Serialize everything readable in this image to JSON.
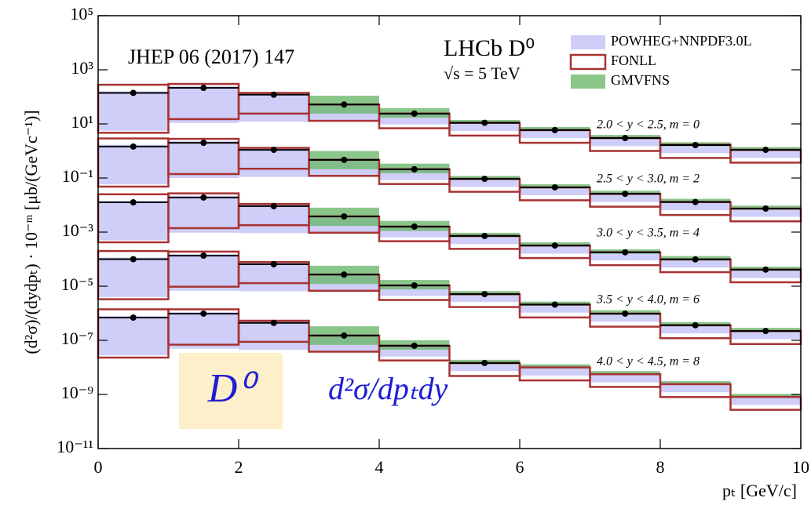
{
  "chart_data": {
    "type": "band-histogram",
    "annotations": {
      "reference": "JHEP 06 (2017) 147",
      "experiment": "LHCb D⁰",
      "energy": "√s = 5 TeV",
      "overlay_particle": "D⁰",
      "overlay_formula": "d²σ/dpₜdy"
    },
    "ylabel": "(d²σ)/(dydpₜ) · 10⁻ᵐ [μb/(GeVc⁻¹)]",
    "xlabel": "pₜ [GeV/c]",
    "log_y": true,
    "xlim": [
      0,
      10
    ],
    "xticks": [
      0,
      2,
      4,
      6,
      8,
      10
    ],
    "ylim": [
      1e-11,
      100000.0
    ],
    "yticks": [
      {
        "value": 100000.0,
        "label": "10⁵"
      },
      {
        "value": 1000.0,
        "label": "10³"
      },
      {
        "value": 10,
        "label": "10¹"
      },
      {
        "value": 0.1,
        "label": "10⁻¹"
      },
      {
        "value": 0.001,
        "label": "10⁻³"
      },
      {
        "value": 1e-05,
        "label": "10⁻⁵"
      },
      {
        "value": 1e-07,
        "label": "10⁻⁷"
      },
      {
        "value": 1e-09,
        "label": "10⁻⁹"
      },
      {
        "value": 1e-11,
        "label": "10⁻¹¹"
      }
    ],
    "bins": [
      0,
      1,
      2,
      3,
      4,
      5,
      6,
      7,
      8,
      9,
      10
    ],
    "series": [
      {
        "name": "POWHEG+NNPDF3.0L",
        "color": "#c9c9f7"
      },
      {
        "name": "FONLL",
        "color": "#a83232"
      },
      {
        "name": "GMVFNS",
        "color": "#6db86d"
      }
    ],
    "data_color": "#000000",
    "groups": [
      {
        "label": "2.0 < y < 2.5, m = 0",
        "values": [
          140,
          215,
          120,
          52,
          24,
          11,
          5.9,
          3.0,
          1.65,
          1.1
        ],
        "bands": [
          {
            "low": [
              5.6,
              10.8,
              12,
              13,
              9.6,
              5.5,
              3.0,
              1.5,
              0.83,
              0.55
            ],
            "high": [
              160,
              250,
              140,
              60,
              28,
              13,
              6.8,
              3.5,
              1.9,
              1.3
            ]
          },
          {
            "low": [
              4.7,
              15,
              24,
              13,
              6.9,
              3.7,
              2.0,
              1.0,
              0.55,
              0.37
            ],
            "high": [
              280,
              300,
              140,
              52,
              24,
              11,
              5.9,
              3.0,
              1.7,
              1.1
            ]
          },
          {
            "low": [
              null,
              null,
              null,
              24,
              17,
              10,
              5.4,
              2.7,
              1.5,
              1.0
            ],
            "high": [
              null,
              null,
              null,
              110,
              38,
              14,
              7.7,
              3.9,
              2.1,
              1.4
            ]
          }
        ]
      },
      {
        "label": "2.5 < y < 3.0, m = 2",
        "values": [
          1.45,
          2.0,
          1.1,
          0.47,
          0.21,
          0.093,
          0.045,
          0.026,
          0.013,
          0.0074
        ],
        "bands": [
          {
            "low": [
              0.058,
              0.1,
              0.11,
              0.12,
              0.084,
              0.047,
              0.023,
              0.013,
              0.0065,
              0.0037
            ],
            "high": [
              1.7,
              2.3,
              1.3,
              0.54,
              0.24,
              0.11,
              0.052,
              0.03,
              0.015,
              0.0085
            ]
          },
          {
            "low": [
              0.048,
              0.14,
              0.22,
              0.12,
              0.06,
              0.031,
              0.015,
              0.0087,
              0.0043,
              0.0025
            ],
            "high": [
              2.9,
              2.8,
              1.3,
              0.47,
              0.21,
              0.093,
              0.045,
              0.026,
              0.013,
              0.0074
            ]
          },
          {
            "low": [
              null,
              null,
              null,
              0.21,
              0.15,
              0.085,
              0.041,
              0.024,
              0.012,
              0.0067
            ],
            "high": [
              null,
              null,
              null,
              0.99,
              0.34,
              0.12,
              0.059,
              0.034,
              0.017,
              0.0096
            ]
          }
        ]
      },
      {
        "label": "3.0 < y < 3.5, m = 4",
        "values": [
          0.0126,
          0.019,
          0.0091,
          0.0038,
          0.0016,
          0.00072,
          0.00032,
          0.00018,
          9.8e-05,
          4.1e-05
        ],
        "bands": [
          {
            "low": [
              0.0005,
              0.00095,
              0.00091,
              0.00095,
              0.00064,
              0.00036,
              0.00016,
              9e-05,
              4.9e-05,
              2e-05
            ],
            "high": [
              0.0145,
              0.022,
              0.0105,
              0.0044,
              0.0018,
              0.00083,
              0.00037,
              0.00021,
              0.00011,
              4.7e-05
            ]
          },
          {
            "low": [
              0.00042,
              0.0014,
              0.0018,
              0.00095,
              0.00046,
              0.00024,
              0.00011,
              6e-05,
              3.3e-05,
              1.4e-05
            ],
            "high": [
              0.025,
              0.027,
              0.011,
              0.0038,
              0.0016,
              0.00072,
              0.00032,
              0.00018,
              9.8e-05,
              4.1e-05
            ]
          },
          {
            "low": [
              null,
              null,
              null,
              0.0017,
              0.0011,
              0.00065,
              0.00029,
              0.00016,
              8.9e-05,
              3.7e-05
            ],
            "high": [
              null,
              null,
              null,
              0.008,
              0.0026,
              0.00094,
              0.00042,
              0.00023,
              0.00013,
              5.3e-05
            ]
          }
        ]
      },
      {
        "label": "3.5 < y < 4.0, m = 6",
        "values": [
          0.0001,
          0.000135,
          6.5e-05,
          2.7e-05,
          1.07e-05,
          5.1e-06,
          2.1e-06,
          9.7e-07,
          3.6e-07,
          2.2e-07
        ],
        "bands": [
          {
            "low": [
              4e-06,
              6.8e-06,
              6.5e-06,
              6.8e-06,
              4.3e-06,
              2.6e-06,
              1.05e-06,
              4.9e-07,
              1.8e-07,
              1.1e-07
            ],
            "high": [
              0.000115,
              0.000155,
              7.5e-05,
              3.1e-05,
              1.2e-05,
              5.9e-06,
              2.4e-06,
              1.1e-06,
              4.1e-07,
              2.5e-07
            ]
          },
          {
            "low": [
              3.3e-06,
              9.6e-06,
              1.3e-05,
              6.8e-06,
              3.1e-06,
              1.7e-06,
              7e-07,
              3.2e-07,
              1.2e-07,
              7.3e-08
            ],
            "high": [
              0.0002,
              0.00019,
              7.8e-05,
              2.7e-05,
              1.07e-05,
              5.1e-06,
              2.1e-06,
              9.7e-07,
              3.6e-07,
              2.2e-07
            ]
          },
          {
            "low": [
              null,
              null,
              null,
              1.2e-05,
              7.6e-06,
              4.6e-06,
              1.9e-06,
              8.8e-07,
              3.3e-07,
              2e-07
            ],
            "high": [
              null,
              null,
              null,
              5.7e-05,
              1.7e-05,
              6.6e-06,
              2.7e-06,
              1.3e-06,
              4.7e-07,
              2.9e-07
            ]
          }
        ]
      },
      {
        "label": "4.0 < y < 4.5, m = 8",
        "values": [
          6.9e-07,
          9.7e-07,
          4.4e-07,
          1.5e-07,
          6.3e-08,
          1.45e-08,
          null,
          null,
          null,
          null
        ],
        "bands": [
          {
            "low": [
              2.8e-08,
              4.9e-08,
              4.4e-08,
              3.8e-08,
              2.5e-08,
              7.3e-09,
              5e-09,
              2.8e-09,
              1.2e-09,
              4.1e-10
            ],
            "high": [
              7.9e-07,
              1.1e-06,
              5.1e-07,
              1.7e-07,
              7.2e-08,
              1.7e-08,
              1.15e-08,
              6.4e-09,
              2.8e-09,
              9.3e-10
            ]
          },
          {
            "low": [
              2.3e-08,
              6.9e-08,
              8.8e-08,
              3.8e-08,
              1.8e-08,
              4.8e-09,
              3.3e-09,
              1.9e-09,
              8e-10,
              2.7e-10
            ],
            "high": [
              1.4e-06,
              1.4e-06,
              5.3e-07,
              1.5e-07,
              6.3e-08,
              1.45e-08,
              1e-08,
              5.6e-09,
              2.4e-09,
              8.1e-10
            ]
          },
          {
            "low": [
              null,
              null,
              null,
              6.8e-08,
              4.5e-08,
              1.3e-08,
              9.1e-09,
              5.1e-09,
              2.2e-09,
              7.4e-10
            ],
            "high": [
              null,
              null,
              null,
              3.3e-07,
              1e-07,
              1.9e-08,
              1.3e-08,
              7.3e-09,
              3.1e-09,
              1.05e-09
            ]
          }
        ]
      }
    ]
  }
}
